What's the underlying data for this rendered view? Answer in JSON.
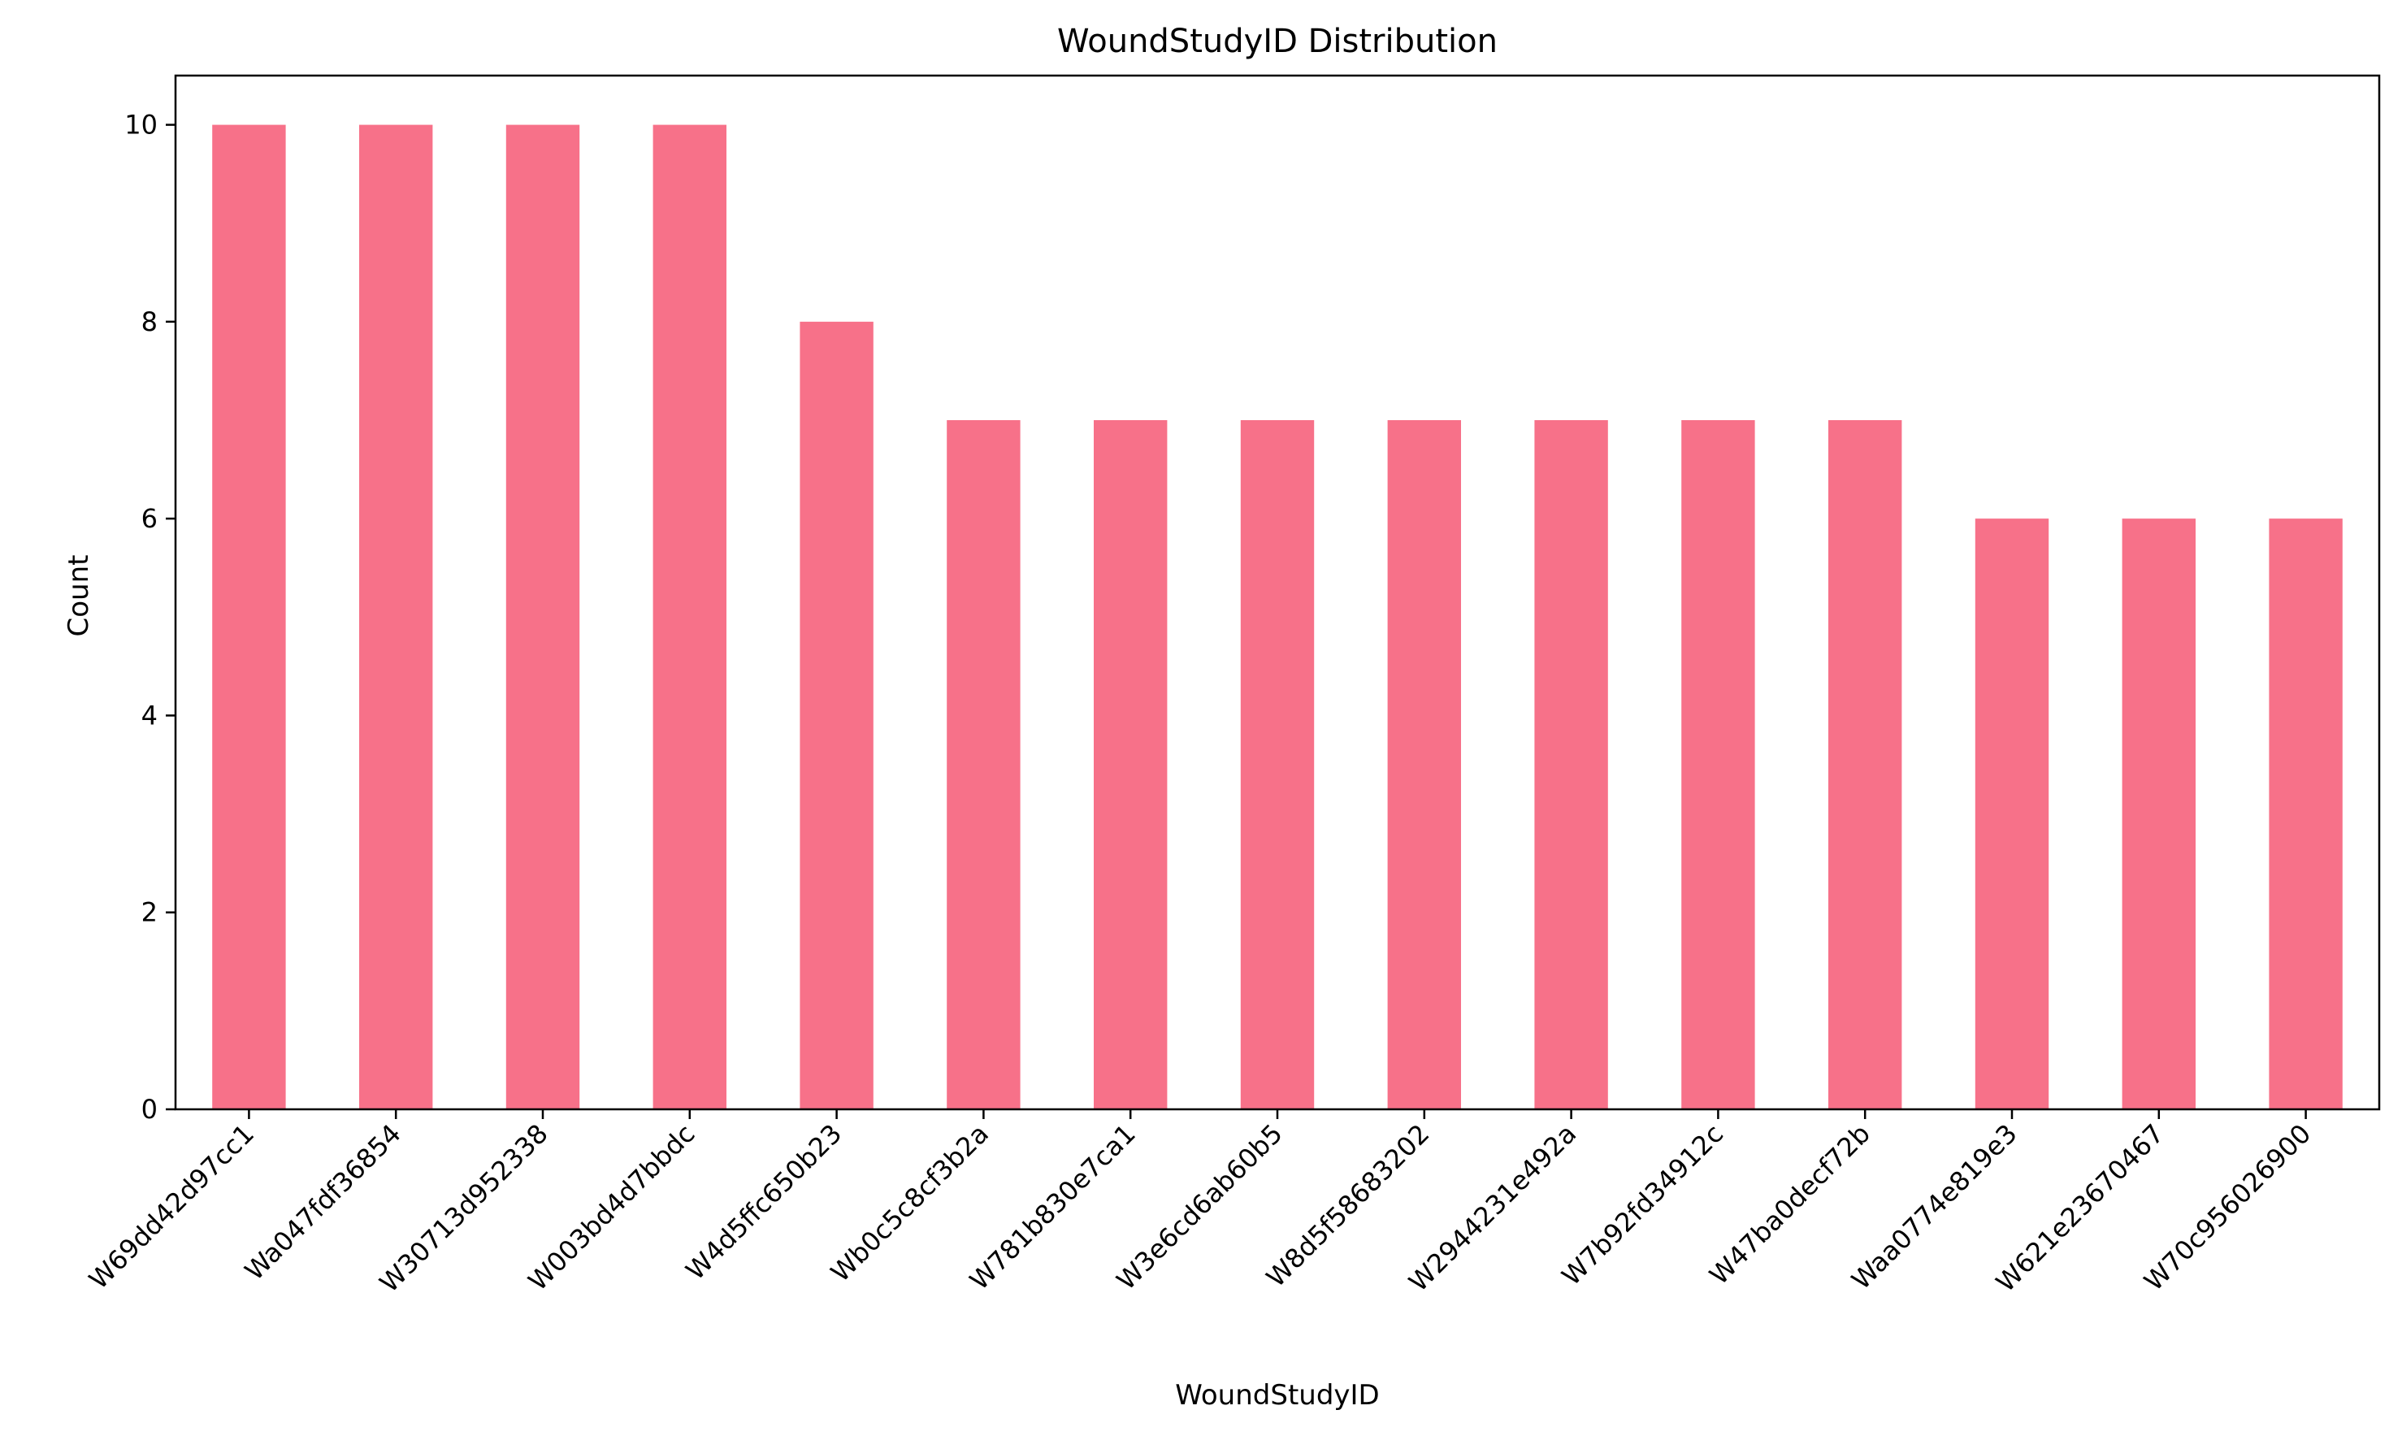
{
  "chart_data": {
    "type": "bar",
    "title": "WoundStudyID Distribution",
    "xlabel": "WoundStudyID",
    "ylabel": "Count",
    "categories": [
      "W69dd42d97cc1",
      "Wa047fdf36854",
      "W30713d952338",
      "W003bd4d7bbdc",
      "W4d5ffc650b23",
      "Wb0c5c8cf3b2a",
      "W781b830e7ca1",
      "W3e6cd6ab60b5",
      "W8d5f58683202",
      "W2944231e492a",
      "W7b92fd34912c",
      "W47ba0decf72b",
      "Waa0774e819e3",
      "W621e23670467",
      "W70c956026900"
    ],
    "values": [
      10,
      10,
      10,
      10,
      8,
      7,
      7,
      7,
      7,
      7,
      7,
      7,
      6,
      6,
      6
    ],
    "ylim": [
      0,
      10.5
    ],
    "yticks": [
      0,
      2,
      4,
      6,
      8,
      10
    ],
    "bar_color": "#f77189",
    "grid": false,
    "legend": "none"
  }
}
